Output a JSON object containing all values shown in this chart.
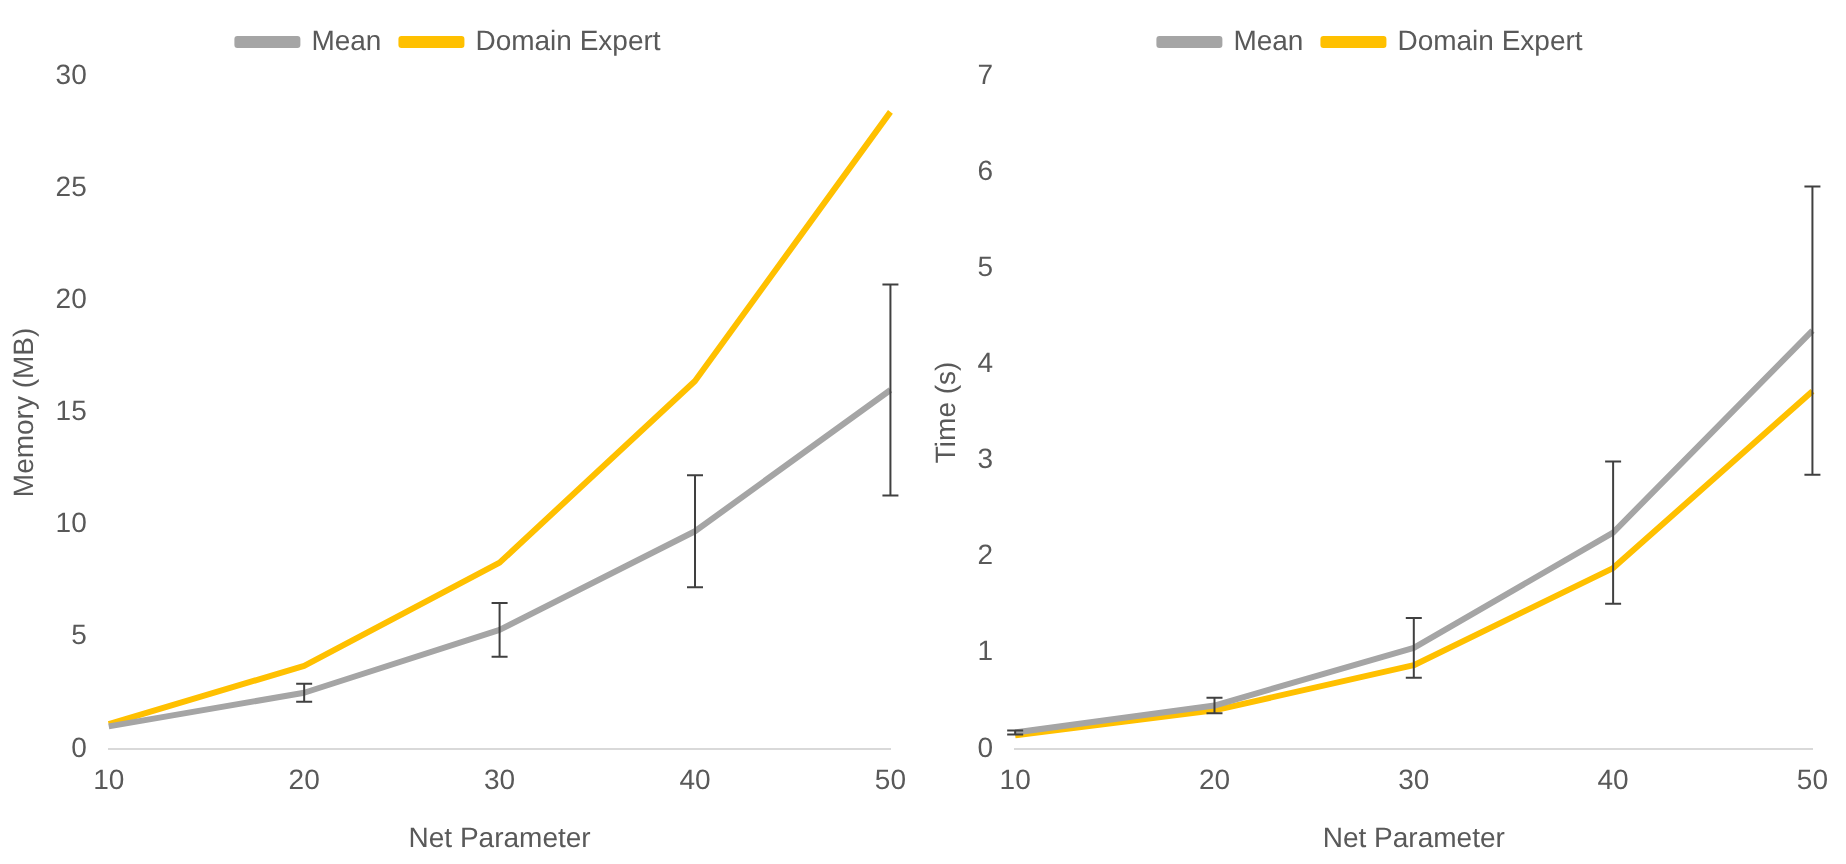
{
  "chart_data": [
    {
      "type": "line",
      "xlabel": "Net Parameter",
      "ylabel": "Memory (MB)",
      "categories": [
        "10",
        "20",
        "30",
        "40",
        "50"
      ],
      "ylim": [
        0,
        30
      ],
      "yticks": [
        0,
        5,
        10,
        15,
        20,
        25,
        30
      ],
      "grid": false,
      "legend": "top",
      "marker": "none",
      "series": [
        {
          "name": "Mean",
          "color": "#a5a5a5",
          "values": [
            1.0,
            2.5,
            5.3,
            9.7,
            16.0
          ],
          "errors": [
            null,
            0.4,
            1.2,
            2.5,
            4.7
          ]
        },
        {
          "name": "Domain Expert",
          "color": "#ffc000",
          "values": [
            1.1,
            3.7,
            8.3,
            16.4,
            28.4
          ]
        }
      ]
    },
    {
      "type": "line",
      "xlabel": "Net Parameter",
      "ylabel": "Time (s)",
      "categories": [
        "10",
        "20",
        "30",
        "40",
        "50"
      ],
      "ylim": [
        0,
        7
      ],
      "yticks": [
        0,
        1,
        2,
        3,
        4,
        5,
        6,
        7
      ],
      "grid": false,
      "legend": "top",
      "marker": "none",
      "series": [
        {
          "name": "Mean",
          "color": "#a5a5a5",
          "values": [
            0.17,
            0.45,
            1.05,
            2.25,
            4.35
          ],
          "errors": [
            0.02,
            0.08,
            0.31,
            0.74,
            1.5
          ]
        },
        {
          "name": "Domain Expert",
          "color": "#ffc000",
          "values": [
            0.14,
            0.4,
            0.87,
            1.88,
            3.72
          ]
        }
      ]
    }
  ]
}
